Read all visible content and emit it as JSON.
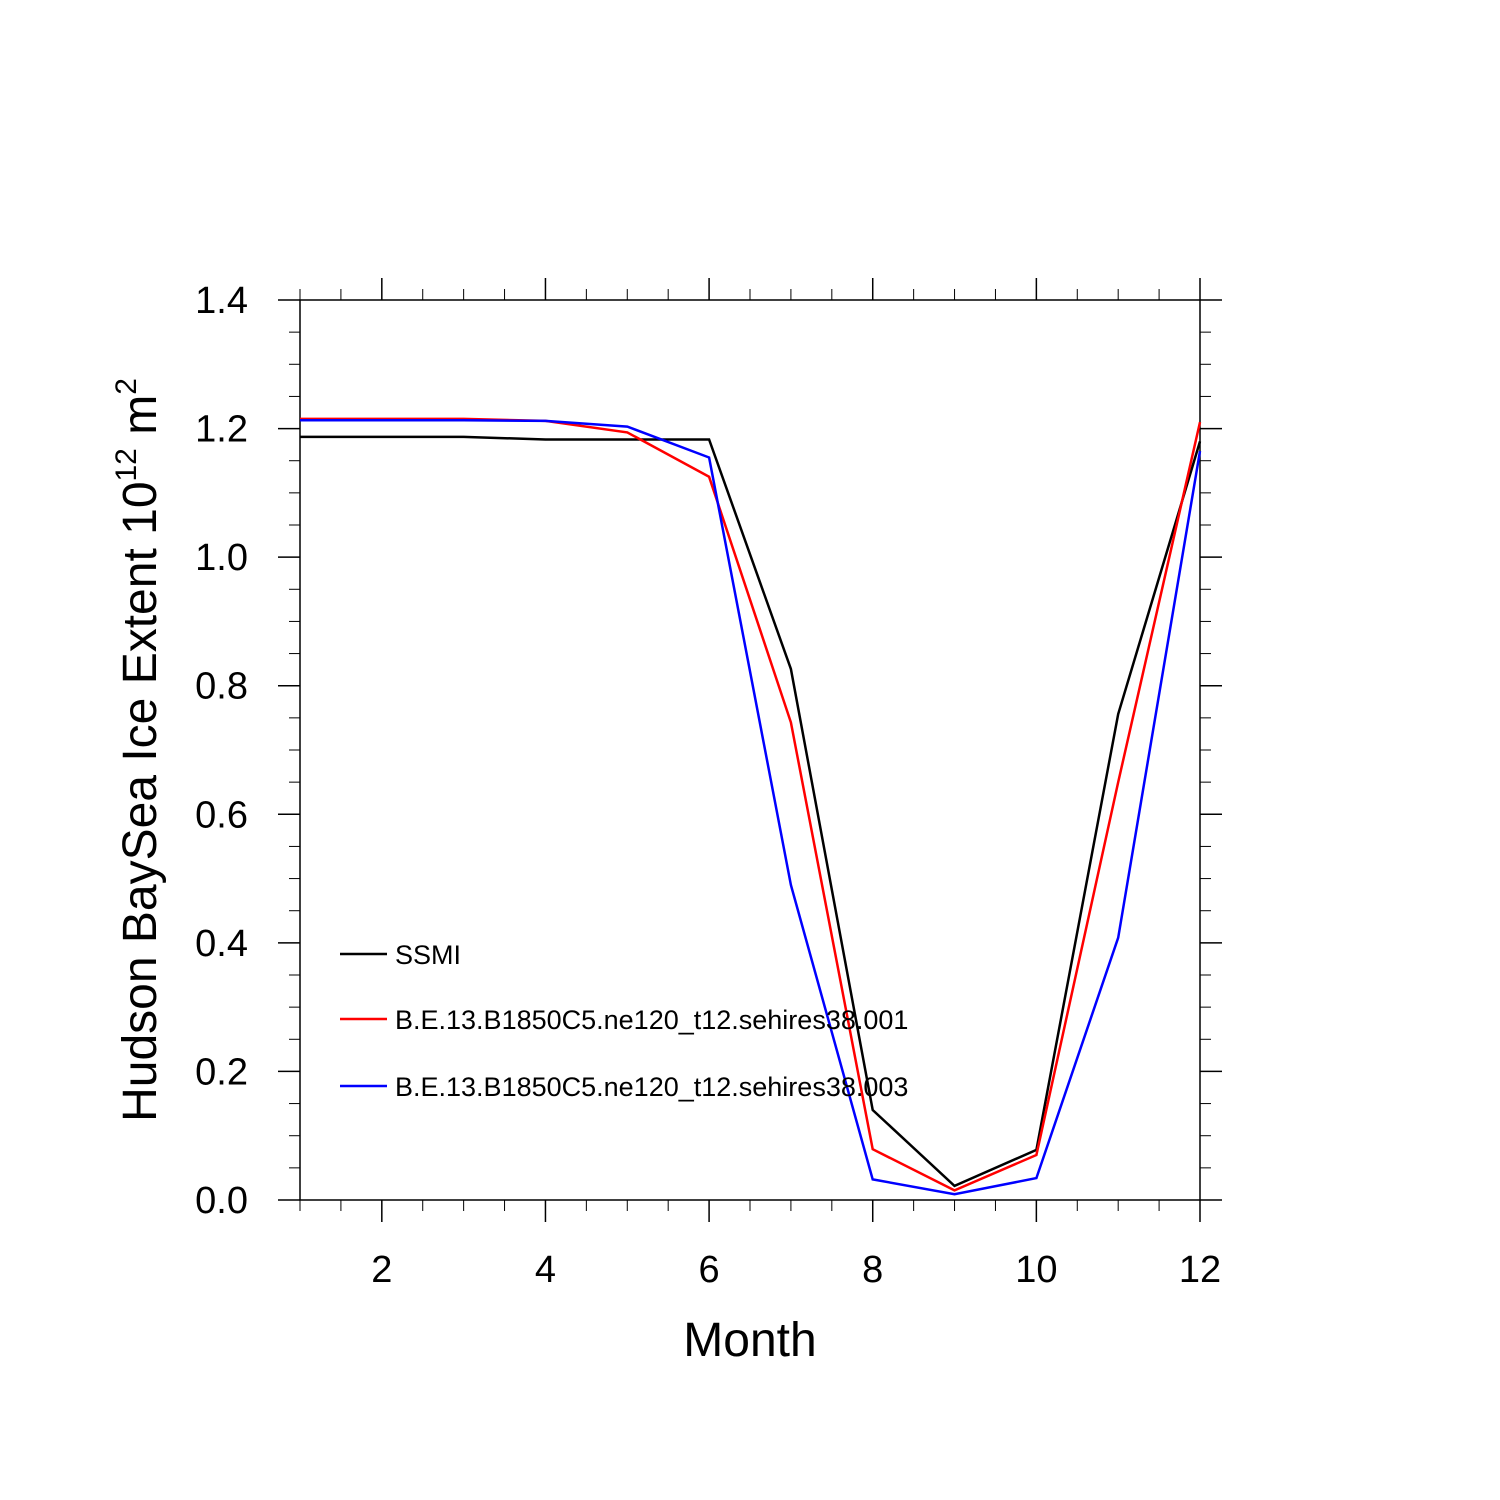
{
  "chart_data": {
    "type": "line",
    "title": "",
    "xlabel": "Month",
    "ylabel_main": "Hudson BaySea Ice Extent 10",
    "ylabel_exp": "12",
    "ylabel_unit": " m",
    "ylabel_unit_exp": "2",
    "xlim": [
      1,
      12
    ],
    "ylim": [
      0.0,
      1.4
    ],
    "x_ticks": [
      2,
      4,
      6,
      8,
      10,
      12
    ],
    "x_tick_labels": [
      "2",
      "4",
      "6",
      "8",
      "10",
      "12"
    ],
    "y_ticks": [
      0.0,
      0.2,
      0.4,
      0.6,
      0.8,
      1.0,
      1.2,
      1.4
    ],
    "y_tick_labels": [
      "0.0",
      "0.2",
      "0.4",
      "0.6",
      "0.8",
      "1.0",
      "1.2",
      "1.4"
    ],
    "x": [
      1,
      2,
      3,
      4,
      5,
      6,
      7,
      8,
      9,
      10,
      11,
      12
    ],
    "legend_position": "lower-left",
    "grid": false,
    "series": [
      {
        "name": "SSMI",
        "color": "#000000",
        "values": [
          1.187,
          1.187,
          1.187,
          1.183,
          1.183,
          1.183,
          0.826,
          0.14,
          0.022,
          0.078,
          0.756,
          1.18
        ]
      },
      {
        "name": "B.E.13.B1850C5.ne120_t12.sehires38.001",
        "color": "#ff0000",
        "values": [
          1.215,
          1.215,
          1.215,
          1.212,
          1.194,
          1.125,
          0.743,
          0.079,
          0.015,
          0.07,
          0.65,
          1.21
        ]
      },
      {
        "name": "B.E.13.B1850C5.ne120_t12.sehires38.003",
        "color": "#0000ff",
        "values": [
          1.213,
          1.213,
          1.213,
          1.212,
          1.203,
          1.155,
          0.49,
          0.032,
          0.009,
          0.034,
          0.408,
          1.165
        ]
      }
    ]
  }
}
